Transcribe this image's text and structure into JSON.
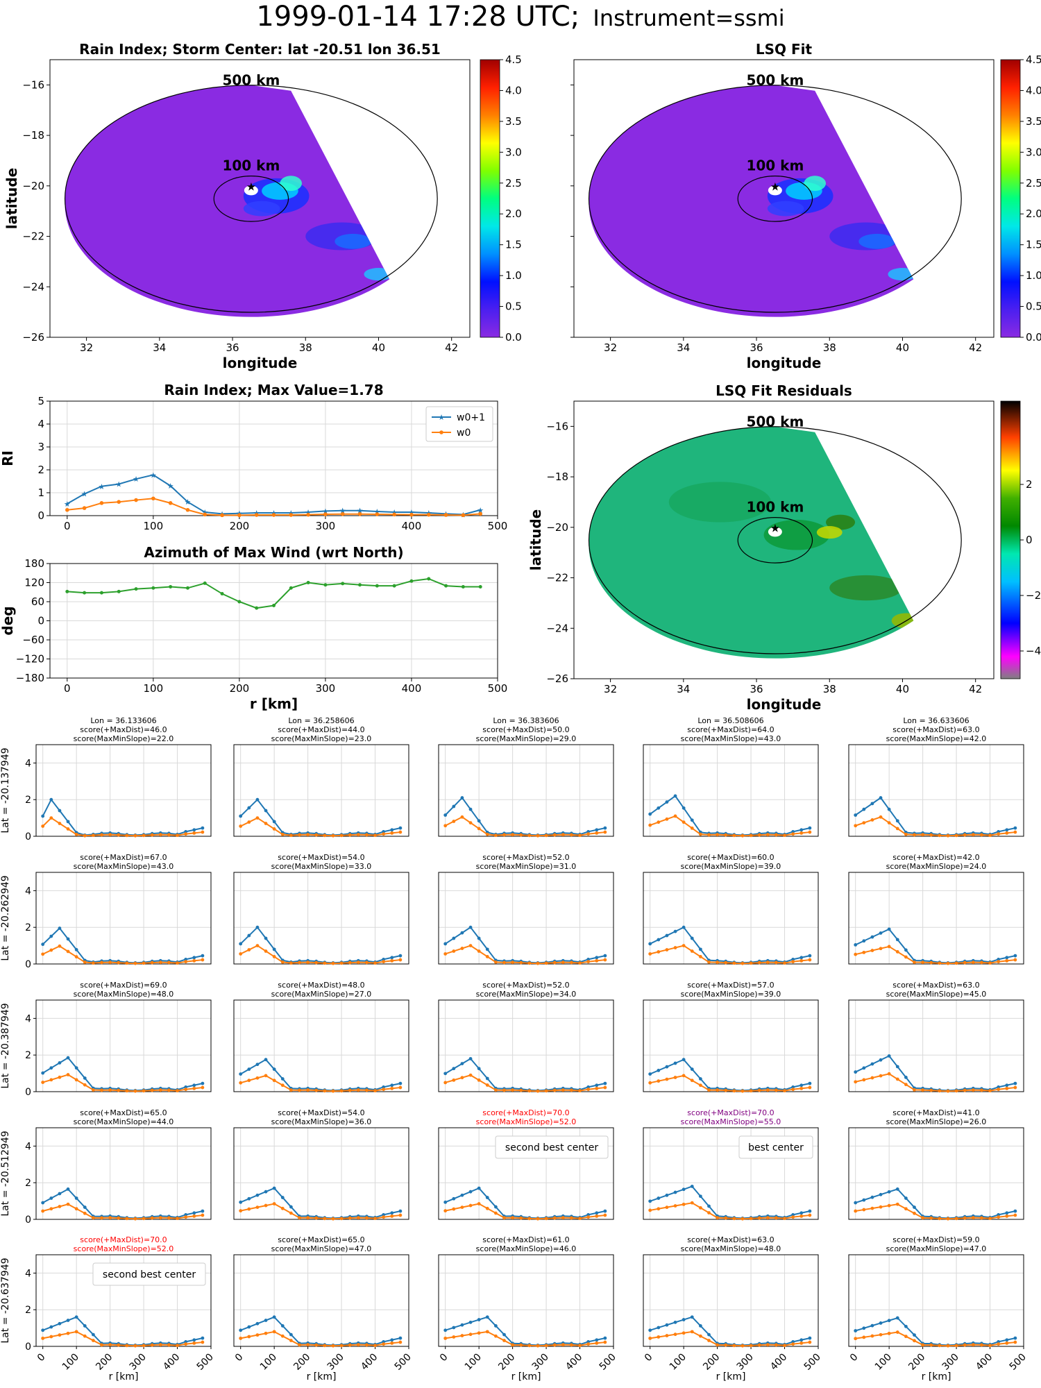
{
  "figure": {
    "title_main": "1999-01-14 17:28 UTC;",
    "title_sub": "Instrument=ssmi"
  },
  "colors": {
    "w0p1": "#1f77b4",
    "w0": "#ff7f0e",
    "azimuth": "#2ca02c",
    "rain_bg": "#8a2be2",
    "residual_bg": "#1fb57c",
    "grid": "#d9d9d9",
    "highlight_red": "#ff0000",
    "highlight_purple": "#800080"
  },
  "maps": {
    "rain": {
      "title": "Rain Index; Storm Center: lat -20.51 lon 36.51",
      "xlabel": "longitude",
      "ylabel": "latitude",
      "xticks": [
        "32",
        "34",
        "36",
        "38",
        "40",
        "42"
      ],
      "yticks": [
        "−16",
        "−18",
        "−20",
        "−22",
        "−24",
        "−26"
      ],
      "xlim": [
        31,
        42.5
      ],
      "ylim": [
        -26,
        -15
      ],
      "center": {
        "lon": 36.51,
        "lat": -20.51
      },
      "circle_labels": [
        "500 km",
        "100 km"
      ],
      "colorbar_ticks": [
        "0.0",
        "0.5",
        "1.0",
        "1.5",
        "2.0",
        "2.5",
        "3.0",
        "3.5",
        "4.0",
        "4.5"
      ],
      "colorbar_range": [
        0,
        4.5
      ]
    },
    "fit": {
      "title": "LSQ Fit",
      "xlabel": "longitude",
      "xticks": [
        "32",
        "34",
        "36",
        "38",
        "40",
        "42"
      ],
      "circle_labels": [
        "500 km",
        "100 km"
      ],
      "colorbar_ticks": [
        "0.0",
        "0.5",
        "1.0",
        "1.5",
        "2.0",
        "2.5",
        "3.0",
        "3.5",
        "4.0",
        "4.5"
      ]
    },
    "residuals": {
      "title": "LSQ Fit Residuals",
      "xlabel": "longitude",
      "ylabel": "latitude",
      "xticks": [
        "32",
        "34",
        "36",
        "38",
        "40",
        "42"
      ],
      "yticks": [
        "−16",
        "−18",
        "−20",
        "−22",
        "−24",
        "−26"
      ],
      "circle_labels": [
        "500 km",
        "100 km"
      ],
      "colorbar_ticks": [
        "2",
        "0",
        "−2",
        "−4"
      ],
      "colorbar_range": [
        -5,
        5
      ]
    }
  },
  "chart_data": [
    {
      "type": "line",
      "title": "Rain Index; Max Value=1.78",
      "xlabel": "",
      "ylabel": "RI",
      "xlim": [
        -20,
        500
      ],
      "ylim": [
        0,
        5
      ],
      "xticks": [
        "0",
        "100",
        "200",
        "300",
        "400",
        "500"
      ],
      "yticks": [
        "0",
        "1",
        "2",
        "3",
        "4",
        "5"
      ],
      "legend": "top-right",
      "x": [
        0,
        20,
        40,
        60,
        80,
        100,
        120,
        140,
        160,
        180,
        200,
        220,
        240,
        260,
        280,
        300,
        320,
        340,
        360,
        380,
        400,
        420,
        440,
        460,
        480
      ],
      "series": [
        {
          "name": "w0+1",
          "values": [
            0.52,
            0.95,
            1.28,
            1.38,
            1.6,
            1.78,
            1.3,
            0.6,
            0.15,
            0.08,
            0.1,
            0.12,
            0.12,
            0.12,
            0.15,
            0.2,
            0.22,
            0.22,
            0.18,
            0.15,
            0.15,
            0.12,
            0.08,
            0.05,
            0.25
          ]
        },
        {
          "name": "w0",
          "values": [
            0.25,
            0.33,
            0.55,
            0.6,
            0.68,
            0.75,
            0.55,
            0.25,
            0.05,
            0.02,
            0.02,
            0.03,
            0.03,
            0.03,
            0.04,
            0.06,
            0.07,
            0.07,
            0.06,
            0.05,
            0.04,
            0.04,
            0.03,
            0.02,
            0.08
          ]
        }
      ]
    },
    {
      "type": "line",
      "title": "Azimuth of Max Wind (wrt North)",
      "xlabel": "r [km]",
      "ylabel": "deg",
      "xlim": [
        -20,
        500
      ],
      "ylim": [
        -180,
        180
      ],
      "xticks": [
        "0",
        "100",
        "200",
        "300",
        "400",
        "500"
      ],
      "yticks": [
        "180",
        "120",
        "60",
        "0",
        "−60",
        "−120",
        "−180"
      ],
      "x": [
        0,
        20,
        40,
        60,
        80,
        100,
        120,
        140,
        160,
        180,
        200,
        220,
        240,
        260,
        280,
        300,
        320,
        340,
        360,
        380,
        400,
        420,
        440,
        460,
        480
      ],
      "values": [
        92,
        88,
        88,
        92,
        100,
        103,
        107,
        103,
        118,
        85,
        60,
        40,
        48,
        103,
        120,
        113,
        117,
        113,
        110,
        110,
        125,
        132,
        110,
        107,
        107
      ]
    },
    {
      "type": "line",
      "title": "",
      "xlabel": "r [km]",
      "xticks": [
        "0",
        "100",
        "200",
        "300",
        "400",
        "500"
      ],
      "yticks": [
        "0",
        "2",
        "4"
      ],
      "ylim": [
        0,
        5
      ],
      "xlim": [
        -20,
        500
      ],
      "columns": [
        "Lon = 36.133606",
        "Lon = 36.258606",
        "Lon = 36.383606",
        "Lon = 36.508606",
        "Lon = 36.633606"
      ],
      "rows": [
        "Lat = -20.137949",
        "Lat = -20.262949",
        "Lat = -20.387949",
        "Lat = -20.512949",
        "Lat = -20.637949"
      ],
      "cells": [
        [
          {
            "s1": "score(+MaxDist)=46.0",
            "s2": "score(MaxMinSlope)=22.0",
            "peak": 2.0,
            "peak_i": 1
          },
          {
            "s1": "score(+MaxDist)=44.0",
            "s2": "score(MaxMinSlope)=23.0",
            "peak": 2.0,
            "peak_i": 2
          },
          {
            "s1": "score(+MaxDist)=50.0",
            "s2": "score(MaxMinSlope)=29.0",
            "peak": 2.1,
            "peak_i": 2
          },
          {
            "s1": "score(+MaxDist)=64.0",
            "s2": "score(MaxMinSlope)=43.0",
            "peak": 2.2,
            "peak_i": 3
          },
          {
            "s1": "score(+MaxDist)=63.0",
            "s2": "score(MaxMinSlope)=42.0",
            "peak": 2.1,
            "peak_i": 3
          }
        ],
        [
          {
            "s1": "score(+MaxDist)=67.0",
            "s2": "score(MaxMinSlope)=43.0",
            "peak": 1.95,
            "peak_i": 2
          },
          {
            "s1": "score(+MaxDist)=54.0",
            "s2": "score(MaxMinSlope)=33.0",
            "peak": 2.0,
            "peak_i": 2
          },
          {
            "s1": "score(+MaxDist)=52.0",
            "s2": "score(MaxMinSlope)=31.0",
            "peak": 2.0,
            "peak_i": 3
          },
          {
            "s1": "score(+MaxDist)=60.0",
            "s2": "score(MaxMinSlope)=39.0",
            "peak": 2.0,
            "peak_i": 4
          },
          {
            "s1": "score(+MaxDist)=42.0",
            "s2": "score(MaxMinSlope)=24.0",
            "peak": 1.9,
            "peak_i": 4
          }
        ],
        [
          {
            "s1": "score(+MaxDist)=69.0",
            "s2": "score(MaxMinSlope)=48.0",
            "peak": 1.85,
            "peak_i": 3
          },
          {
            "s1": "score(+MaxDist)=48.0",
            "s2": "score(MaxMinSlope)=27.0",
            "peak": 1.75,
            "peak_i": 3
          },
          {
            "s1": "score(+MaxDist)=52.0",
            "s2": "score(MaxMinSlope)=34.0",
            "peak": 1.8,
            "peak_i": 3
          },
          {
            "s1": "score(+MaxDist)=57.0",
            "s2": "score(MaxMinSlope)=39.0",
            "peak": 1.75,
            "peak_i": 4
          },
          {
            "s1": "score(+MaxDist)=63.0",
            "s2": "score(MaxMinSlope)=45.0",
            "peak": 1.95,
            "peak_i": 4
          }
        ],
        [
          {
            "s1": "score(+MaxDist)=65.0",
            "s2": "score(MaxMinSlope)=44.0",
            "peak": 1.65,
            "peak_i": 3
          },
          {
            "s1": "score(+MaxDist)=54.0",
            "s2": "score(MaxMinSlope)=36.0",
            "peak": 1.7,
            "peak_i": 4
          },
          {
            "s1": "score(+MaxDist)=70.0",
            "s2": "score(MaxMinSlope)=52.0",
            "peak": 1.7,
            "peak_i": 4,
            "color": "#ff0000",
            "legend": "second best center"
          },
          {
            "s1": "score(+MaxDist)=70.0",
            "s2": "score(MaxMinSlope)=55.0",
            "peak": 1.8,
            "peak_i": 5,
            "color": "#800080",
            "legend": "best center"
          },
          {
            "s1": "score(+MaxDist)=41.0",
            "s2": "score(MaxMinSlope)=26.0",
            "peak": 1.65,
            "peak_i": 5
          }
        ],
        [
          {
            "s1": "score(+MaxDist)=70.0",
            "s2": "score(MaxMinSlope)=52.0",
            "peak": 1.6,
            "peak_i": 4,
            "color": "#ff0000",
            "legend": "second best center"
          },
          {
            "s1": "score(+MaxDist)=65.0",
            "s2": "score(MaxMinSlope)=47.0",
            "peak": 1.6,
            "peak_i": 4
          },
          {
            "s1": "score(+MaxDist)=61.0",
            "s2": "score(MaxMinSlope)=46.0",
            "peak": 1.6,
            "peak_i": 5
          },
          {
            "s1": "score(+MaxDist)=63.0",
            "s2": "score(MaxMinSlope)=48.0",
            "peak": 1.6,
            "peak_i": 5
          },
          {
            "s1": "score(+MaxDist)=59.0",
            "s2": "score(MaxMinSlope)=47.0",
            "peak": 1.55,
            "peak_i": 5
          }
        ]
      ]
    }
  ]
}
